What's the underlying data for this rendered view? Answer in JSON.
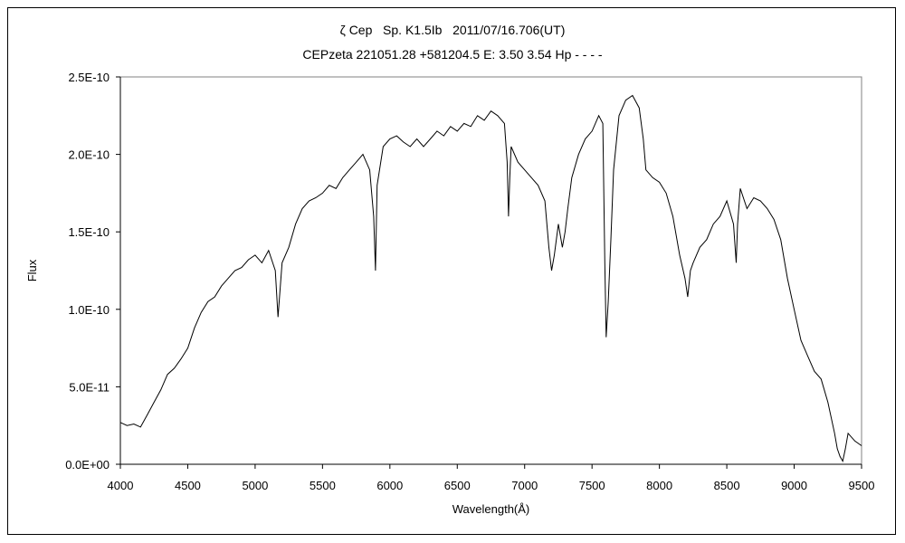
{
  "chart_data": {
    "type": "line",
    "title": "ζ Cep   Sp. K1.5Ib   2011/07/16.706(UT)",
    "subtitle": "CEPzeta 221051.28 +581204.5 E: 3.50 3.54 Hp - - - -",
    "xlabel": "Wavelength(Å)",
    "ylabel": "Flux",
    "xlim": [
      4000,
      9500
    ],
    "ylim": [
      0,
      2.5e-10
    ],
    "x_ticks": [
      4000,
      4500,
      5000,
      5500,
      6000,
      6500,
      7000,
      7500,
      8000,
      8500,
      9000,
      9500
    ],
    "y_ticks": [
      0,
      5e-11,
      1e-10,
      1.5e-10,
      2e-10,
      2.5e-10
    ],
    "x_tick_labels": [
      "4000",
      "4500",
      "5000",
      "5500",
      "6000",
      "6500",
      "7000",
      "7500",
      "8000",
      "8500",
      "9000",
      "9500"
    ],
    "y_tick_labels": [
      "0.0E+00",
      "5.0E-11",
      "1.0E-10",
      "1.5E-10",
      "2.0E-10",
      "2.5E-10"
    ],
    "grid": false,
    "legend": "none",
    "line_color": "#000000",
    "series": [
      {
        "x": [
          4000,
          4050,
          4100,
          4150,
          4200,
          4250,
          4300,
          4350,
          4400,
          4450,
          4500,
          4550,
          4600,
          4650,
          4700,
          4750,
          4800,
          4850,
          4900,
          4950,
          5000,
          5050,
          5100,
          5150,
          5170,
          5200,
          5250,
          5300,
          5350,
          5400,
          5450,
          5500,
          5550,
          5600,
          5650,
          5700,
          5750,
          5800,
          5850,
          5880,
          5893,
          5905,
          5950,
          6000,
          6050,
          6100,
          6150,
          6200,
          6250,
          6300,
          6350,
          6400,
          6450,
          6500,
          6550,
          6600,
          6650,
          6700,
          6750,
          6800,
          6850,
          6870,
          6880,
          6890,
          6900,
          6950,
          7000,
          7050,
          7100,
          7150,
          7180,
          7200,
          7220,
          7250,
          7280,
          7300,
          7320,
          7350,
          7400,
          7450,
          7500,
          7550,
          7580,
          7595,
          7605,
          7620,
          7640,
          7660,
          7700,
          7750,
          7800,
          7850,
          7880,
          7900,
          7950,
          8000,
          8050,
          8100,
          8150,
          8190,
          8210,
          8230,
          8250,
          8300,
          8350,
          8400,
          8450,
          8500,
          8550,
          8570,
          8580,
          8600,
          8650,
          8700,
          8750,
          8800,
          8850,
          8900,
          8950,
          9000,
          9050,
          9100,
          9150,
          9200,
          9250,
          9300,
          9320,
          9340,
          9360,
          9380,
          9400,
          9450,
          9500
        ],
        "y": [
          2.7e-11,
          2.5e-11,
          2.6e-11,
          2.4e-11,
          3.2e-11,
          4e-11,
          4.8e-11,
          5.8e-11,
          6.2e-11,
          6.8e-11,
          7.5e-11,
          8.8e-11,
          9.8e-11,
          1.05e-10,
          1.08e-10,
          1.15e-10,
          1.2e-10,
          1.25e-10,
          1.27e-10,
          1.32e-10,
          1.35e-10,
          1.3e-10,
          1.38e-10,
          1.25e-10,
          9.5e-11,
          1.3e-10,
          1.4e-10,
          1.55e-10,
          1.65e-10,
          1.7e-10,
          1.72e-10,
          1.75e-10,
          1.8e-10,
          1.78e-10,
          1.85e-10,
          1.9e-10,
          1.95e-10,
          2e-10,
          1.9e-10,
          1.6e-10,
          1.25e-10,
          1.8e-10,
          2.05e-10,
          2.1e-10,
          2.12e-10,
          2.08e-10,
          2.05e-10,
          2.1e-10,
          2.05e-10,
          2.1e-10,
          2.15e-10,
          2.12e-10,
          2.18e-10,
          2.15e-10,
          2.2e-10,
          2.18e-10,
          2.25e-10,
          2.22e-10,
          2.28e-10,
          2.25e-10,
          2.2e-10,
          1.95e-10,
          1.6e-10,
          1.85e-10,
          2.05e-10,
          1.95e-10,
          1.9e-10,
          1.85e-10,
          1.8e-10,
          1.7e-10,
          1.4e-10,
          1.25e-10,
          1.35e-10,
          1.55e-10,
          1.4e-10,
          1.5e-10,
          1.65e-10,
          1.85e-10,
          2e-10,
          2.1e-10,
          2.15e-10,
          2.25e-10,
          2.2e-10,
          1.3e-10,
          8.2e-11,
          1.05e-10,
          1.45e-10,
          1.9e-10,
          2.25e-10,
          2.35e-10,
          2.38e-10,
          2.3e-10,
          2.1e-10,
          1.9e-10,
          1.85e-10,
          1.82e-10,
          1.75e-10,
          1.6e-10,
          1.35e-10,
          1.2e-10,
          1.08e-10,
          1.25e-10,
          1.3e-10,
          1.4e-10,
          1.45e-10,
          1.55e-10,
          1.6e-10,
          1.7e-10,
          1.55e-10,
          1.3e-10,
          1.55e-10,
          1.78e-10,
          1.65e-10,
          1.72e-10,
          1.7e-10,
          1.65e-10,
          1.58e-10,
          1.45e-10,
          1.2e-10,
          1e-10,
          8e-11,
          7e-11,
          6e-11,
          5.5e-11,
          4e-11,
          2e-11,
          1e-11,
          5e-12,
          2e-12,
          1e-11,
          2e-11,
          1.5e-11,
          1.2e-11
        ]
      }
    ]
  }
}
